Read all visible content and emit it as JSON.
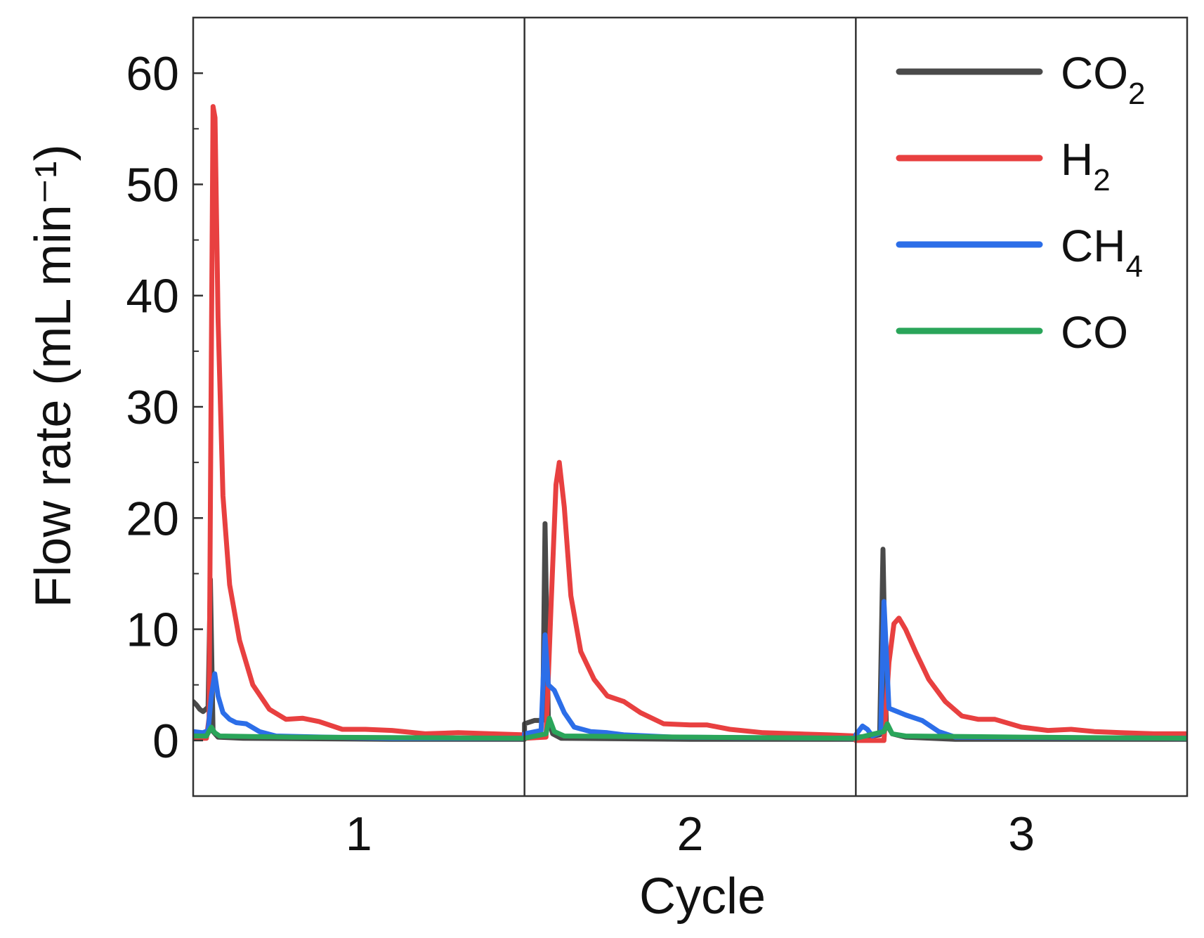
{
  "chart_data": {
    "type": "line",
    "title": "",
    "xlabel": "Cycle",
    "ylabel": "Flow rate (mL min⁻¹)",
    "ylim": [
      -5,
      65
    ],
    "xlim": [
      0,
      3
    ],
    "yticks": [
      0,
      10,
      20,
      30,
      40,
      50,
      60
    ],
    "categories": [
      "1",
      "2",
      "3"
    ],
    "cycle_boundaries": [
      1,
      2
    ],
    "legend_position": "top-right",
    "grid": false,
    "series": [
      {
        "name": "CO2",
        "label_main": "CO",
        "label_sub": "2",
        "color": "#4a4a4a",
        "points": [
          [
            0.0,
            3.5
          ],
          [
            0.01,
            3.2
          ],
          [
            0.02,
            2.8
          ],
          [
            0.03,
            2.6
          ],
          [
            0.045,
            3.0
          ],
          [
            0.052,
            14.5
          ],
          [
            0.06,
            0.8
          ],
          [
            0.075,
            0.3
          ],
          [
            0.15,
            0.2
          ],
          [
            0.6,
            0.1
          ],
          [
            1.0,
            0.1
          ],
          [
            1.0,
            1.5
          ],
          [
            1.03,
            1.8
          ],
          [
            1.055,
            1.8
          ],
          [
            1.062,
            19.5
          ],
          [
            1.072,
            2.0
          ],
          [
            1.085,
            0.6
          ],
          [
            1.11,
            0.2
          ],
          [
            1.5,
            0.1
          ],
          [
            2.0,
            0.1
          ],
          [
            2.0,
            0.3
          ],
          [
            2.05,
            0.4
          ],
          [
            2.072,
            0.5
          ],
          [
            2.082,
            17.2
          ],
          [
            2.092,
            1.5
          ],
          [
            2.11,
            0.6
          ],
          [
            2.15,
            0.3
          ],
          [
            2.3,
            0.1
          ],
          [
            3.0,
            0.1
          ]
        ]
      },
      {
        "name": "H2",
        "label_main": "H",
        "label_sub": "2",
        "color": "#e84040",
        "points": [
          [
            0.0,
            0.2
          ],
          [
            0.04,
            0.2
          ],
          [
            0.048,
            2.0
          ],
          [
            0.055,
            35.0
          ],
          [
            0.06,
            57.0
          ],
          [
            0.066,
            56.0
          ],
          [
            0.075,
            38.0
          ],
          [
            0.09,
            22.0
          ],
          [
            0.11,
            14.0
          ],
          [
            0.14,
            9.0
          ],
          [
            0.18,
            5.0
          ],
          [
            0.23,
            2.8
          ],
          [
            0.28,
            1.9
          ],
          [
            0.33,
            2.0
          ],
          [
            0.38,
            1.7
          ],
          [
            0.45,
            1.0
          ],
          [
            0.52,
            1.0
          ],
          [
            0.6,
            0.9
          ],
          [
            0.7,
            0.6
          ],
          [
            0.8,
            0.7
          ],
          [
            0.9,
            0.6
          ],
          [
            1.0,
            0.5
          ],
          [
            1.0,
            0.2
          ],
          [
            1.065,
            0.3
          ],
          [
            1.08,
            12.0
          ],
          [
            1.095,
            23.0
          ],
          [
            1.105,
            25.0
          ],
          [
            1.12,
            21.0
          ],
          [
            1.14,
            13.0
          ],
          [
            1.17,
            8.0
          ],
          [
            1.21,
            5.5
          ],
          [
            1.25,
            4.0
          ],
          [
            1.3,
            3.5
          ],
          [
            1.35,
            2.5
          ],
          [
            1.42,
            1.5
          ],
          [
            1.5,
            1.4
          ],
          [
            1.55,
            1.4
          ],
          [
            1.62,
            1.0
          ],
          [
            1.72,
            0.7
          ],
          [
            1.82,
            0.6
          ],
          [
            1.92,
            0.5
          ],
          [
            2.0,
            0.4
          ],
          [
            2.0,
            0.0
          ],
          [
            2.085,
            0.0
          ],
          [
            2.1,
            7.0
          ],
          [
            2.115,
            10.5
          ],
          [
            2.13,
            11.0
          ],
          [
            2.15,
            10.0
          ],
          [
            2.18,
            8.0
          ],
          [
            2.22,
            5.5
          ],
          [
            2.27,
            3.5
          ],
          [
            2.32,
            2.2
          ],
          [
            2.37,
            1.9
          ],
          [
            2.42,
            1.9
          ],
          [
            2.5,
            1.2
          ],
          [
            2.58,
            0.9
          ],
          [
            2.65,
            1.0
          ],
          [
            2.72,
            0.8
          ],
          [
            2.8,
            0.7
          ],
          [
            2.9,
            0.6
          ],
          [
            3.0,
            0.6
          ]
        ]
      },
      {
        "name": "CH4",
        "label_main": "CH",
        "label_sub": "4",
        "color": "#2c6ee8",
        "points": [
          [
            0.0,
            0.8
          ],
          [
            0.03,
            0.7
          ],
          [
            0.045,
            0.9
          ],
          [
            0.055,
            4.0
          ],
          [
            0.065,
            6.0
          ],
          [
            0.075,
            4.0
          ],
          [
            0.09,
            2.5
          ],
          [
            0.11,
            1.9
          ],
          [
            0.13,
            1.6
          ],
          [
            0.16,
            1.5
          ],
          [
            0.2,
            0.8
          ],
          [
            0.25,
            0.4
          ],
          [
            0.4,
            0.3
          ],
          [
            0.6,
            0.2
          ],
          [
            1.0,
            0.2
          ],
          [
            1.0,
            0.6
          ],
          [
            1.05,
            0.9
          ],
          [
            1.062,
            9.5
          ],
          [
            1.072,
            5.0
          ],
          [
            1.09,
            4.5
          ],
          [
            1.12,
            2.5
          ],
          [
            1.15,
            1.2
          ],
          [
            1.2,
            0.8
          ],
          [
            1.25,
            0.7
          ],
          [
            1.3,
            0.5
          ],
          [
            1.45,
            0.3
          ],
          [
            2.0,
            0.2
          ],
          [
            2.0,
            0.5
          ],
          [
            2.02,
            1.3
          ],
          [
            2.035,
            1.0
          ],
          [
            2.05,
            0.4
          ],
          [
            2.075,
            0.7
          ],
          [
            2.085,
            12.5
          ],
          [
            2.1,
            2.9
          ],
          [
            2.15,
            2.3
          ],
          [
            2.2,
            1.8
          ],
          [
            2.25,
            0.8
          ],
          [
            2.3,
            0.3
          ],
          [
            3.0,
            0.2
          ]
        ]
      },
      {
        "name": "CO",
        "label_main": "CO",
        "label_sub": "",
        "color": "#2aa55a",
        "points": [
          [
            0.0,
            0.4
          ],
          [
            0.04,
            0.4
          ],
          [
            0.055,
            1.2
          ],
          [
            0.065,
            0.7
          ],
          [
            0.08,
            0.4
          ],
          [
            0.3,
            0.3
          ],
          [
            1.0,
            0.2
          ],
          [
            1.0,
            0.2
          ],
          [
            1.065,
            0.6
          ],
          [
            1.075,
            2.0
          ],
          [
            1.09,
            0.8
          ],
          [
            1.12,
            0.4
          ],
          [
            1.5,
            0.3
          ],
          [
            2.0,
            0.2
          ],
          [
            2.0,
            0.2
          ],
          [
            2.085,
            0.8
          ],
          [
            2.095,
            1.5
          ],
          [
            2.11,
            0.6
          ],
          [
            2.15,
            0.4
          ],
          [
            2.5,
            0.3
          ],
          [
            3.0,
            0.2
          ]
        ]
      }
    ]
  }
}
